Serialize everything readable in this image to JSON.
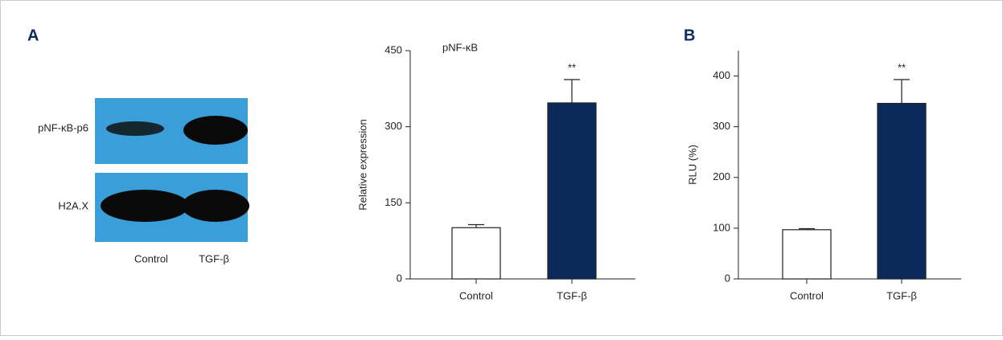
{
  "figure": {
    "panel_labels": [
      "A",
      "B"
    ],
    "blot": {
      "rows": [
        "pNF-κB-p6",
        "H2A.X"
      ],
      "lanes": [
        "Control",
        "TGF-β"
      ]
    }
  },
  "chart_data": [
    {
      "type": "bar",
      "title": "pNF-κB",
      "y_label": "Relative expression",
      "categories": [
        "Control",
        "TGF-β"
      ],
      "values": [
        101,
        347
      ],
      "errors": [
        6,
        46
      ],
      "colors": [
        "#ffffff",
        "#0b2a5b"
      ],
      "annotations": [
        {
          "text": "**",
          "category": "TGF-β"
        }
      ],
      "ylim": [
        0,
        450
      ],
      "yticks": [
        0,
        150,
        300,
        450
      ]
    },
    {
      "type": "bar",
      "y_label": "RLU (%)",
      "categories": [
        "Control",
        "TGF-β"
      ],
      "values": [
        97,
        346
      ],
      "errors": [
        2,
        47
      ],
      "colors": [
        "#ffffff",
        "#0b2a5b"
      ],
      "annotations": [
        {
          "text": "**",
          "category": "TGF-β"
        }
      ],
      "ylim": [
        0,
        450
      ],
      "yticks": [
        0,
        100,
        200,
        300,
        400
      ]
    }
  ]
}
